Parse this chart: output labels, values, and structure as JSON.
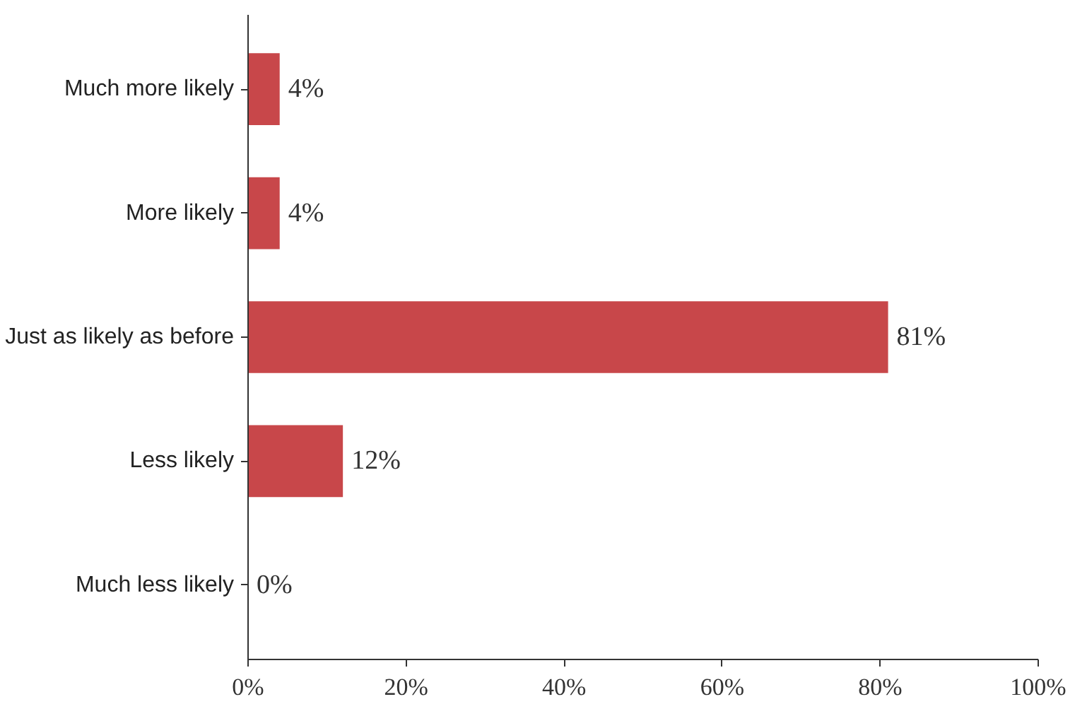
{
  "chart_data": {
    "type": "bar",
    "orientation": "horizontal",
    "categories": [
      "Much more likely",
      "More likely",
      "Just as likely as before",
      "Less likely",
      "Much less likely"
    ],
    "values": [
      4,
      4,
      81,
      12,
      0
    ],
    "value_labels": [
      "4%",
      "4%",
      "81%",
      "12%",
      "0%"
    ],
    "color": "#c8474a",
    "xlim": [
      0,
      100
    ],
    "xticks": [
      {
        "value": 0,
        "label": "0%"
      },
      {
        "value": 20,
        "label": "20%"
      },
      {
        "value": 40,
        "label": "40%"
      },
      {
        "value": 60,
        "label": "60%"
      },
      {
        "value": 80,
        "label": "80%"
      },
      {
        "value": 100,
        "label": "100%"
      }
    ],
    "grid": false
  }
}
